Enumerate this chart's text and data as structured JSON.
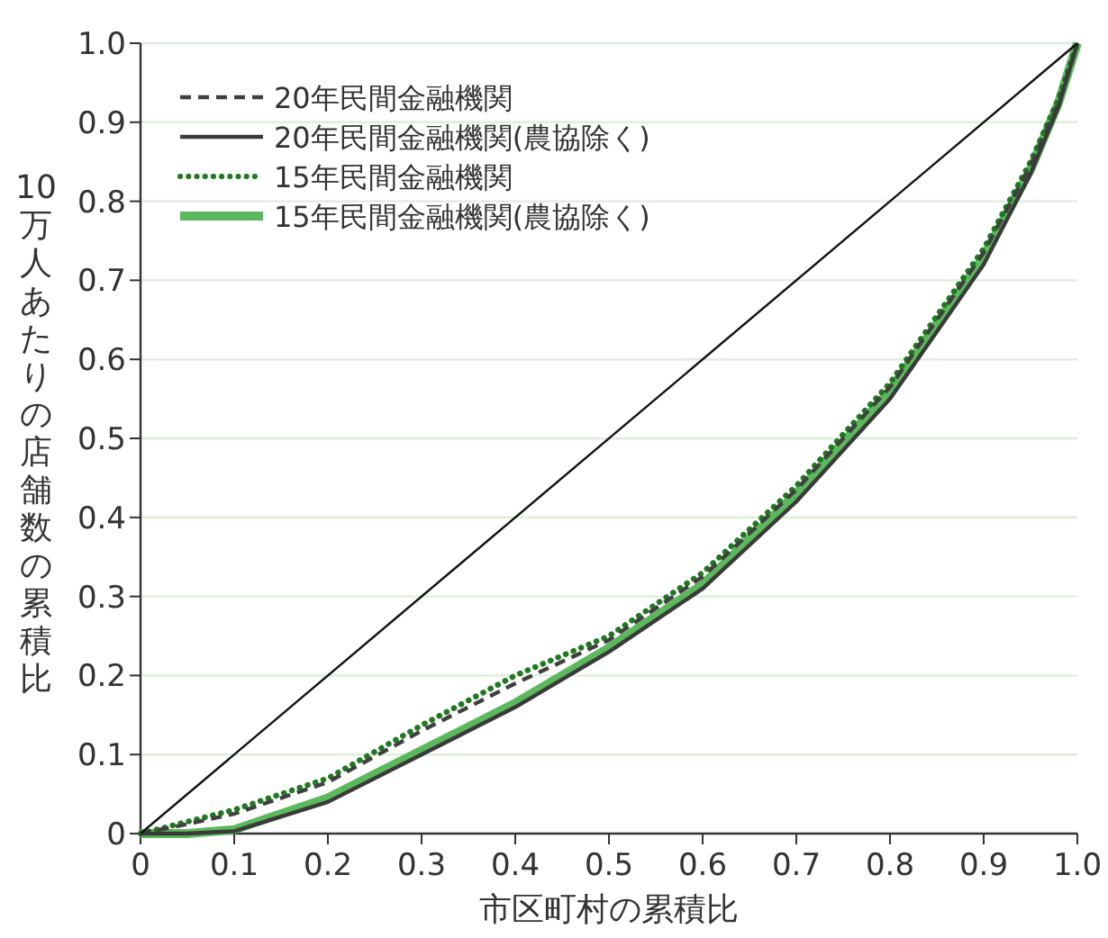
{
  "chart_data": {
    "type": "line",
    "xlabel": "市区町村の累積比",
    "ylabel": "10万人あたりの店舗数の累積比",
    "xlim": [
      0,
      1
    ],
    "ylim": [
      0,
      1
    ],
    "xticks": [
      0,
      0.1,
      0.2,
      0.3,
      0.4,
      0.5,
      0.6,
      0.7,
      0.8,
      0.9,
      {
        "value": 1,
        "label": "1.0"
      }
    ],
    "yticks": [
      0,
      0.1,
      0.2,
      0.3,
      0.4,
      0.5,
      0.6,
      0.7,
      0.8,
      0.9,
      {
        "value": 1,
        "label": "1.0"
      }
    ],
    "grid": "y",
    "legend": "top left",
    "x": [
      0,
      0.05,
      0.1,
      0.2,
      0.3,
      0.4,
      0.5,
      0.6,
      0.7,
      0.8,
      0.9,
      0.95,
      0.98,
      1
    ],
    "series": [
      {
        "x": [
          0,
          1
        ],
        "values": [
          0,
          1
        ],
        "color": "#111111",
        "line_style": "solid"
      },
      {
        "name": "20年民間金融機関",
        "color": "#404040",
        "line_style": "dashed",
        "values": [
          0,
          0.012,
          0.025,
          0.065,
          0.13,
          0.19,
          0.245,
          0.325,
          0.435,
          0.565,
          0.735,
          0.845,
          0.925,
          1
        ]
      },
      {
        "name": "20年民間金融機関(農協除く)",
        "color": "#3a3a3a",
        "line_style": "solid",
        "values": [
          0,
          0,
          0.003,
          0.04,
          0.1,
          0.16,
          0.23,
          0.31,
          0.42,
          0.55,
          0.72,
          0.835,
          0.92,
          1
        ]
      },
      {
        "name": "15年民間金融機関",
        "color": "#1f7a1f",
        "line_style": "dotted",
        "values": [
          0,
          0.015,
          0.03,
          0.07,
          0.137,
          0.2,
          0.25,
          0.33,
          0.44,
          0.57,
          0.74,
          0.85,
          0.93,
          1
        ]
      },
      {
        "name": "15年民間金融機関(農協除く)",
        "color": "#5cb85c",
        "line_style": "solid",
        "values": [
          0,
          0,
          0.005,
          0.045,
          0.105,
          0.165,
          0.235,
          0.315,
          0.43,
          0.56,
          0.73,
          0.84,
          0.925,
          1
        ]
      }
    ]
  }
}
